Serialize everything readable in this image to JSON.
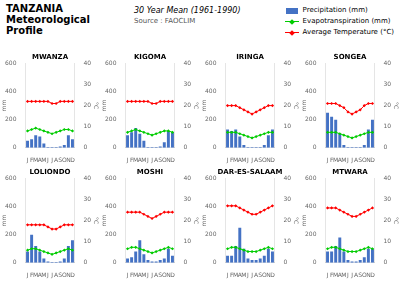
{
  "title": "TANZANIA\nMeteorological\nProfile",
  "subtitle": "30 Year Mean (1961-1990)",
  "annotations": [
    "Source : FAOCLIM"
  ],
  "legend": "top",
  "chart_data": [
    {
      "type": "bar",
      "title": "MWANZA",
      "categories": [
        "J",
        "F",
        "M",
        "A",
        "M",
        "J",
        "J",
        "A",
        "S",
        "O",
        "N",
        "D"
      ],
      "ylabel": "mm",
      "y2label": "°C",
      "ylim": [
        0,
        600
      ],
      "yticks": [
        0,
        200,
        400,
        600
      ],
      "y2lim": [
        0,
        40
      ],
      "y2ticks": [
        0,
        10,
        20,
        30,
        40
      ],
      "grid": false,
      "series": [
        {
          "name": "Precipitation (mm)",
          "type": "bar",
          "color": "#4472c4",
          "values": [
            50,
            60,
            90,
            80,
            30,
            5,
            5,
            5,
            10,
            20,
            90,
            60
          ]
        },
        {
          "name": "Evapotranspiration (mm)",
          "type": "line",
          "marker": "diamond",
          "color": "#00cc00",
          "values": [
            120,
            130,
            140,
            130,
            120,
            110,
            100,
            110,
            120,
            130,
            130,
            120
          ]
        },
        {
          "name": "Average Temperature (°C)",
          "type": "line",
          "marker": "diamond",
          "color": "#ff0000",
          "axis": "y2",
          "values": [
            22,
            22,
            22,
            22,
            22,
            22,
            21,
            21,
            22,
            22,
            22,
            22
          ]
        }
      ]
    },
    {
      "type": "bar",
      "title": "KIGOMA",
      "categories": [
        "J",
        "F",
        "M",
        "A",
        "M",
        "J",
        "J",
        "A",
        "S",
        "O",
        "N",
        "D"
      ],
      "ylabel": "mm",
      "y2label": "°C",
      "ylim": [
        0,
        600
      ],
      "yticks": [
        0,
        200,
        400,
        600
      ],
      "y2lim": [
        0,
        40
      ],
      "y2ticks": [
        0,
        10,
        20,
        30,
        40
      ],
      "grid": false,
      "series": [
        {
          "name": "Precipitation (mm)",
          "type": "bar",
          "color": "#4472c4",
          "values": [
            90,
            110,
            140,
            100,
            50,
            5,
            5,
            5,
            10,
            40,
            120,
            110
          ]
        },
        {
          "name": "Evapotranspiration (mm)",
          "type": "line",
          "marker": "diamond",
          "color": "#00cc00",
          "values": [
            110,
            120,
            130,
            120,
            110,
            100,
            90,
            100,
            110,
            120,
            120,
            110
          ]
        },
        {
          "name": "Average Temperature (°C)",
          "type": "line",
          "marker": "diamond",
          "color": "#ff0000",
          "axis": "y2",
          "values": [
            22,
            22,
            22,
            22,
            22,
            22,
            21,
            21,
            22,
            22,
            22,
            22
          ]
        }
      ]
    },
    {
      "type": "bar",
      "title": "IRINGA",
      "categories": [
        "J",
        "F",
        "M",
        "A",
        "M",
        "J",
        "J",
        "A",
        "S",
        "O",
        "N",
        "D"
      ],
      "ylabel": "mm",
      "y2label": "°C",
      "ylim": [
        0,
        600
      ],
      "yticks": [
        0,
        200,
        400,
        600
      ],
      "y2lim": [
        0,
        40
      ],
      "y2ticks": [
        0,
        10,
        20,
        30,
        40
      ],
      "grid": false,
      "series": [
        {
          "name": "Precipitation (mm)",
          "type": "bar",
          "color": "#4472c4",
          "values": [
            130,
            120,
            130,
            80,
            20,
            5,
            5,
            5,
            5,
            20,
            90,
            130
          ]
        },
        {
          "name": "Evapotranspiration (mm)",
          "type": "line",
          "marker": "diamond",
          "color": "#00cc00",
          "values": [
            110,
            110,
            110,
            100,
            90,
            80,
            70,
            80,
            90,
            100,
            110,
            110
          ]
        },
        {
          "name": "Average Temperature (°C)",
          "type": "line",
          "marker": "diamond",
          "color": "#ff0000",
          "axis": "y2",
          "values": [
            20,
            20,
            20,
            19,
            18,
            17,
            16,
            17,
            18,
            19,
            20,
            20
          ]
        }
      ]
    },
    {
      "type": "bar",
      "title": "SONGEA",
      "categories": [
        "J",
        "F",
        "M",
        "A",
        "M",
        "J",
        "J",
        "A",
        "S",
        "O",
        "N",
        "D"
      ],
      "ylabel": "mm",
      "y2label": "°C",
      "ylim": [
        0,
        600
      ],
      "yticks": [
        0,
        200,
        400,
        600
      ],
      "y2lim": [
        0,
        40
      ],
      "y2ticks": [
        0,
        10,
        20,
        30,
        40
      ],
      "grid": false,
      "series": [
        {
          "name": "Precipitation (mm)",
          "type": "bar",
          "color": "#4472c4",
          "values": [
            250,
            220,
            200,
            100,
            20,
            5,
            5,
            5,
            5,
            20,
            130,
            200
          ]
        },
        {
          "name": "Evapotranspiration (mm)",
          "type": "line",
          "marker": "diamond",
          "color": "#00cc00",
          "values": [
            110,
            110,
            110,
            100,
            90,
            80,
            70,
            80,
            90,
            100,
            110,
            110
          ]
        },
        {
          "name": "Average Temperature (°C)",
          "type": "line",
          "marker": "diamond",
          "color": "#ff0000",
          "axis": "y2",
          "values": [
            21,
            21,
            21,
            20,
            19,
            17,
            16,
            17,
            18,
            20,
            21,
            21
          ]
        }
      ]
    },
    {
      "type": "bar",
      "title": "LOLIONDO",
      "categories": [
        "J",
        "F",
        "M",
        "A",
        "M",
        "J",
        "J",
        "A",
        "S",
        "O",
        "N",
        "D"
      ],
      "ylabel": "mm",
      "y2label": "°C",
      "ylim": [
        0,
        600
      ],
      "yticks": [
        0,
        200,
        400,
        600
      ],
      "y2lim": [
        0,
        40
      ],
      "y2ticks": [
        0,
        10,
        20,
        30,
        40
      ],
      "grid": false,
      "series": [
        {
          "name": "Precipitation (mm)",
          "type": "bar",
          "color": "#4472c4",
          "values": [
            80,
            200,
            120,
            80,
            30,
            10,
            5,
            5,
            10,
            30,
            120,
            160
          ]
        },
        {
          "name": "Evapotranspiration (mm)",
          "type": "line",
          "marker": "diamond",
          "color": "#00cc00",
          "values": [
            90,
            100,
            100,
            90,
            80,
            70,
            60,
            70,
            80,
            90,
            100,
            90
          ]
        },
        {
          "name": "Average Temperature (°C)",
          "type": "line",
          "marker": "diamond",
          "color": "#ff0000",
          "axis": "y2",
          "values": [
            18,
            18,
            18,
            18,
            18,
            17,
            16,
            16,
            17,
            18,
            18,
            18
          ]
        }
      ]
    },
    {
      "type": "bar",
      "title": "MOSHI",
      "categories": [
        "J",
        "F",
        "M",
        "A",
        "M",
        "J",
        "J",
        "A",
        "S",
        "O",
        "N",
        "D"
      ],
      "ylabel": "mm",
      "y2label": "°C",
      "ylim": [
        0,
        600
      ],
      "yticks": [
        0,
        200,
        400,
        600
      ],
      "y2lim": [
        0,
        40
      ],
      "y2ticks": [
        0,
        10,
        20,
        30,
        40
      ],
      "grid": false,
      "series": [
        {
          "name": "Precipitation (mm)",
          "type": "bar",
          "color": "#4472c4",
          "values": [
            30,
            40,
            80,
            160,
            60,
            20,
            10,
            10,
            20,
            30,
            100,
            50
          ]
        },
        {
          "name": "Evapotranspiration (mm)",
          "type": "line",
          "marker": "diamond",
          "color": "#00cc00",
          "values": [
            100,
            110,
            110,
            100,
            90,
            80,
            70,
            80,
            90,
            100,
            110,
            100
          ]
        },
        {
          "name": "Average Temperature (°C)",
          "type": "line",
          "marker": "diamond",
          "color": "#ff0000",
          "axis": "y2",
          "values": [
            24,
            24,
            24,
            24,
            23,
            22,
            21,
            22,
            23,
            24,
            24,
            24
          ]
        }
      ]
    },
    {
      "type": "bar",
      "title": "DAR-ES-SALAAM",
      "categories": [
        "J",
        "F",
        "M",
        "A",
        "M",
        "J",
        "J",
        "A",
        "S",
        "O",
        "N",
        "D"
      ],
      "ylabel": "mm",
      "y2label": "°C",
      "ylim": [
        0,
        600
      ],
      "yticks": [
        0,
        200,
        400,
        600
      ],
      "y2lim": [
        0,
        40
      ],
      "y2ticks": [
        0,
        10,
        20,
        30,
        40
      ],
      "grid": false,
      "series": [
        {
          "name": "Precipitation (mm)",
          "type": "bar",
          "color": "#4472c4",
          "values": [
            50,
            50,
            120,
            250,
            100,
            30,
            20,
            20,
            30,
            50,
            100,
            80
          ]
        },
        {
          "name": "Evapotranspiration (mm)",
          "type": "line",
          "marker": "diamond",
          "color": "#00cc00",
          "values": [
            100,
            110,
            110,
            100,
            90,
            80,
            80,
            80,
            90,
            100,
            110,
            100
          ]
        },
        {
          "name": "Average Temperature (°C)",
          "type": "line",
          "marker": "diamond",
          "color": "#ff0000",
          "axis": "y2",
          "values": [
            27,
            27,
            27,
            26,
            25,
            24,
            23,
            23,
            24,
            25,
            26,
            27
          ]
        }
      ]
    },
    {
      "type": "bar",
      "title": "MTWARA",
      "categories": [
        "J",
        "F",
        "M",
        "A",
        "M",
        "J",
        "J",
        "A",
        "S",
        "O",
        "N",
        "D"
      ],
      "ylabel": "mm",
      "y2label": "°C",
      "ylim": [
        0,
        600
      ],
      "yticks": [
        0,
        200,
        400,
        600
      ],
      "y2lim": [
        0,
        40
      ],
      "y2ticks": [
        0,
        10,
        20,
        30,
        40
      ],
      "grid": false,
      "series": [
        {
          "name": "Precipitation (mm)",
          "type": "bar",
          "color": "#4472c4",
          "values": [
            80,
            80,
            120,
            180,
            80,
            20,
            10,
            10,
            20,
            40,
            100,
            100
          ]
        },
        {
          "name": "Evapotranspiration (mm)",
          "type": "line",
          "marker": "diamond",
          "color": "#00cc00",
          "values": [
            100,
            110,
            110,
            100,
            90,
            80,
            80,
            80,
            90,
            100,
            110,
            100
          ]
        },
        {
          "name": "Average Temperature (°C)",
          "type": "line",
          "marker": "diamond",
          "color": "#ff0000",
          "axis": "y2",
          "values": [
            26,
            26,
            26,
            25,
            24,
            23,
            22,
            22,
            23,
            24,
            25,
            26
          ]
        }
      ]
    }
  ]
}
